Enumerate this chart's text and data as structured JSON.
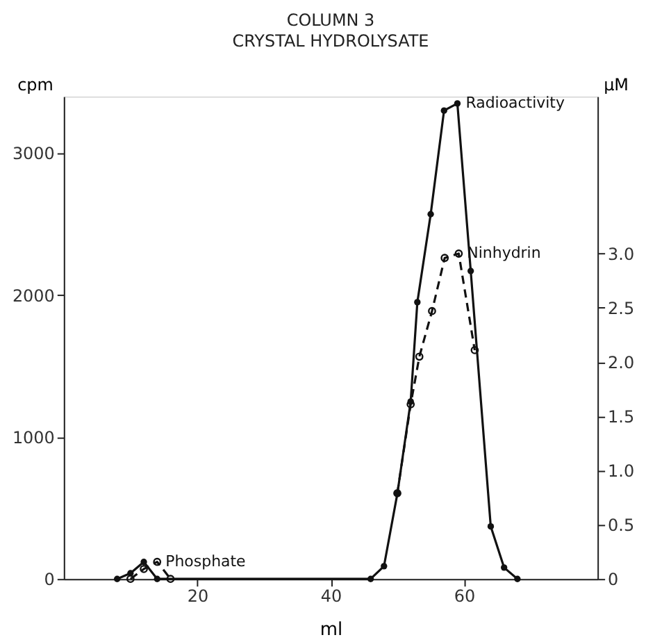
{
  "chart_data": {
    "type": "line",
    "title": "COLUMN 3",
    "subtitle": "CRYSTAL HYDROLYSATE",
    "xlabel": "ml",
    "ylabel": "cpm",
    "y2label": "μM",
    "xlim": [
      0,
      80
    ],
    "xticks": [
      20,
      40,
      60
    ],
    "ylim": [
      0,
      3400
    ],
    "yticks": [
      0,
      1000,
      2000,
      3000
    ],
    "y2lim": [
      0,
      4.45
    ],
    "y2ticks": [
      0,
      {
        "value": 0.5,
        "label": "0.5"
      },
      {
        "value": 1,
        "label": "1.0"
      },
      {
        "value": 1.5,
        "label": "1.5"
      },
      {
        "value": 2,
        "label": "2.0"
      },
      {
        "value": 2.5,
        "label": "2.5"
      },
      {
        "value": 3,
        "label": "3.0"
      }
    ],
    "grid": false,
    "legend": false,
    "marker": "circle",
    "series": [
      {
        "name": "Radioactivity",
        "color": "#111111",
        "line_style": "solid",
        "x": [
          8,
          10,
          12,
          14,
          46,
          48,
          50,
          52,
          53,
          55,
          57,
          59,
          61,
          64,
          66,
          68
        ],
        "values": [
          0,
          40,
          120,
          0,
          0,
          90,
          600,
          1250,
          1950,
          2570,
          3300,
          3350,
          2170,
          370,
          80,
          0
        ]
      },
      {
        "name": "Ninhydrin",
        "color": "#111111",
        "line_style": "dashed",
        "axis": "y2",
        "x": [
          50,
          52,
          53.3,
          55.2,
          57.1,
          59.2,
          61.6
        ],
        "values": [
          0.79,
          1.61,
          2.05,
          2.47,
          2.96,
          3.0,
          2.11
        ]
      },
      {
        "name": "Phosphate",
        "color": "#111111",
        "line_style": "dashed",
        "x": [
          10,
          12,
          14,
          16
        ],
        "values": [
          0,
          70,
          120,
          0
        ]
      }
    ]
  }
}
